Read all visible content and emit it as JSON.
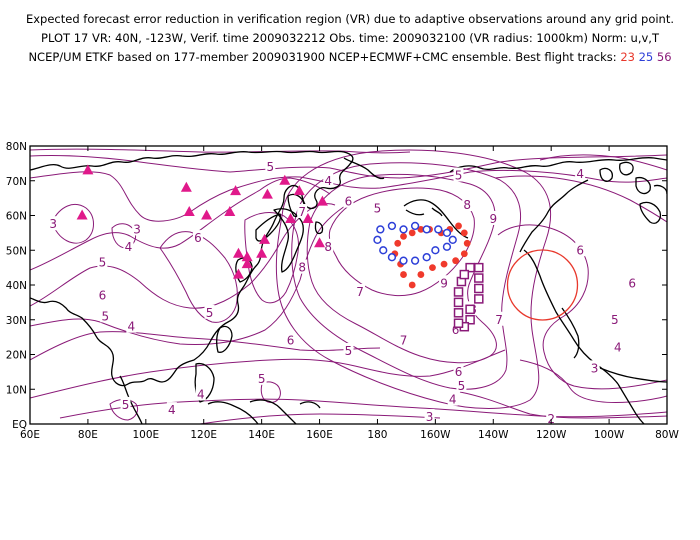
{
  "header": {
    "line1": "Expected forecast error reduction in verification region (VR) due to adaptive observations around any grid point.",
    "line2": "PLOT 17 VR: 40N, -123W, Verif. time 2009032212 Obs. time: 2009032100 (VR radius: 1000km) Norm: u,v,T",
    "line3_prefix": "NCEP/UM ETKF based on 177-member 2009031900 NCEP+ECMWF+CMC ensemble. Best flight tracks:",
    "tracks": [
      {
        "label": "23",
        "color": "#e8382c"
      },
      {
        "label": "25",
        "color": "#2d3fd8"
      },
      {
        "label": "56",
        "color": "#8a1a78"
      }
    ]
  },
  "colors": {
    "contour": "#8a1a78",
    "coast": "#000000",
    "verification_circle": "#e8382c",
    "triangles": "#e0198a",
    "track_23": "#f03a2c",
    "track_25": "#2d3fd8",
    "track_56": "#8a1a78"
  },
  "axes": {
    "x_ticks": [
      "60E",
      "80E",
      "100E",
      "120E",
      "140E",
      "160E",
      "180",
      "160W",
      "140W",
      "120W",
      "100W",
      "80W"
    ],
    "y_ticks": [
      "EQ",
      "10N",
      "20N",
      "30N",
      "40N",
      "50N",
      "60N",
      "70N",
      "80N"
    ]
  },
  "map_data": {
    "lon_range_east": [
      60,
      280
    ],
    "lat_range": [
      0,
      80
    ],
    "verification_region": {
      "lat": 40,
      "lon_east": 237,
      "radius_km": 1000
    },
    "contour_labels": [
      {
        "v": "3",
        "lon": 68,
        "lat": 57.5
      },
      {
        "v": "3",
        "lon": 97,
        "lat": 56
      },
      {
        "v": "4",
        "lon": 94,
        "lat": 51
      },
      {
        "v": "5",
        "lon": 85,
        "lat": 46.5
      },
      {
        "v": "6",
        "lon": 85,
        "lat": 37
      },
      {
        "v": "5",
        "lon": 86,
        "lat": 31
      },
      {
        "v": "4",
        "lon": 95,
        "lat": 28
      },
      {
        "v": "5",
        "lon": 122,
        "lat": 32
      },
      {
        "v": "6",
        "lon": 150,
        "lat": 24
      },
      {
        "v": "5",
        "lon": 140,
        "lat": 13
      },
      {
        "v": "4",
        "lon": 119,
        "lat": 8.5
      },
      {
        "v": "5",
        "lon": 93,
        "lat": 5.5
      },
      {
        "v": "4",
        "lon": 109,
        "lat": 4
      },
      {
        "v": "6",
        "lon": 118,
        "lat": 53.5
      },
      {
        "v": "7",
        "lon": 154,
        "lat": 61
      },
      {
        "v": "6",
        "lon": 170,
        "lat": 64
      },
      {
        "v": "5",
        "lon": 180,
        "lat": 62
      },
      {
        "v": "4",
        "lon": 163,
        "lat": 70
      },
      {
        "v": "5",
        "lon": 208,
        "lat": 71.5
      },
      {
        "v": "8",
        "lon": 211,
        "lat": 63
      },
      {
        "v": "9",
        "lon": 220,
        "lat": 59
      },
      {
        "v": "8",
        "lon": 154,
        "lat": 45
      },
      {
        "v": "8",
        "lon": 163,
        "lat": 51
      },
      {
        "v": "7",
        "lon": 174,
        "lat": 38
      },
      {
        "v": "9",
        "lon": 203,
        "lat": 40.5
      },
      {
        "v": "8",
        "lon": 213,
        "lat": 33
      },
      {
        "v": "7",
        "lon": 222,
        "lat": 30
      },
      {
        "v": "6",
        "lon": 207,
        "lat": 27
      },
      {
        "v": "7",
        "lon": 189,
        "lat": 24
      },
      {
        "v": "5",
        "lon": 170,
        "lat": 21
      },
      {
        "v": "6",
        "lon": 250,
        "lat": 50
      },
      {
        "v": "6",
        "lon": 268,
        "lat": 40.5
      },
      {
        "v": "5",
        "lon": 262,
        "lat": 30
      },
      {
        "v": "4",
        "lon": 263,
        "lat": 22
      },
      {
        "v": "3",
        "lon": 255,
        "lat": 16
      },
      {
        "v": "2",
        "lon": 240,
        "lat": 1.5
      },
      {
        "v": "3",
        "lon": 198,
        "lat": 2
      },
      {
        "v": "4",
        "lon": 206,
        "lat": 7
      },
      {
        "v": "5",
        "lon": 209,
        "lat": 11
      },
      {
        "v": "6",
        "lon": 208,
        "lat": 15
      },
      {
        "v": "4",
        "lon": 250,
        "lat": 72
      },
      {
        "v": "5",
        "lon": 143,
        "lat": 74
      }
    ],
    "triangles": [
      [
        80,
        73
      ],
      [
        78,
        60
      ],
      [
        114,
        68
      ],
      [
        115,
        61
      ],
      [
        121,
        60
      ],
      [
        129,
        61
      ],
      [
        131,
        67
      ],
      [
        142,
        66
      ],
      [
        148,
        70
      ],
      [
        150,
        59
      ],
      [
        153,
        67
      ],
      [
        161,
        64
      ],
      [
        156,
        59
      ],
      [
        160,
        52
      ],
      [
        132,
        49
      ],
      [
        135,
        48
      ],
      [
        132,
        43
      ],
      [
        135,
        46
      ],
      [
        140,
        49
      ],
      [
        141,
        53
      ]
    ],
    "track_23": [
      [
        202,
        55
      ],
      [
        205,
        56
      ],
      [
        208,
        57
      ],
      [
        210,
        55
      ],
      [
        211,
        52
      ],
      [
        210,
        49
      ],
      [
        207,
        47
      ],
      [
        203,
        46
      ],
      [
        199,
        45
      ],
      [
        195,
        43
      ],
      [
        192,
        40
      ],
      [
        189,
        43
      ],
      [
        188,
        46
      ],
      [
        186,
        49
      ],
      [
        187,
        52
      ],
      [
        189,
        54
      ],
      [
        192,
        55
      ],
      [
        195,
        56
      ],
      [
        198,
        56
      ]
    ],
    "track_25": [
      [
        181,
        56
      ],
      [
        185,
        57
      ],
      [
        189,
        56
      ],
      [
        193,
        57
      ],
      [
        197,
        56
      ],
      [
        201,
        56
      ],
      [
        204,
        55
      ],
      [
        206,
        53
      ],
      [
        204,
        51
      ],
      [
        200,
        50
      ],
      [
        197,
        48
      ],
      [
        193,
        47
      ],
      [
        189,
        47
      ],
      [
        185,
        48
      ],
      [
        182,
        50
      ],
      [
        180,
        53
      ]
    ],
    "track_56": [
      [
        212,
        45
      ],
      [
        215,
        45
      ],
      [
        215,
        42
      ],
      [
        215,
        39
      ],
      [
        215,
        36
      ],
      [
        212,
        33
      ],
      [
        212,
        30
      ],
      [
        210,
        28
      ],
      [
        208,
        29
      ],
      [
        208,
        32
      ],
      [
        208,
        35
      ],
      [
        208,
        38
      ],
      [
        209,
        41
      ],
      [
        210,
        43
      ]
    ]
  }
}
